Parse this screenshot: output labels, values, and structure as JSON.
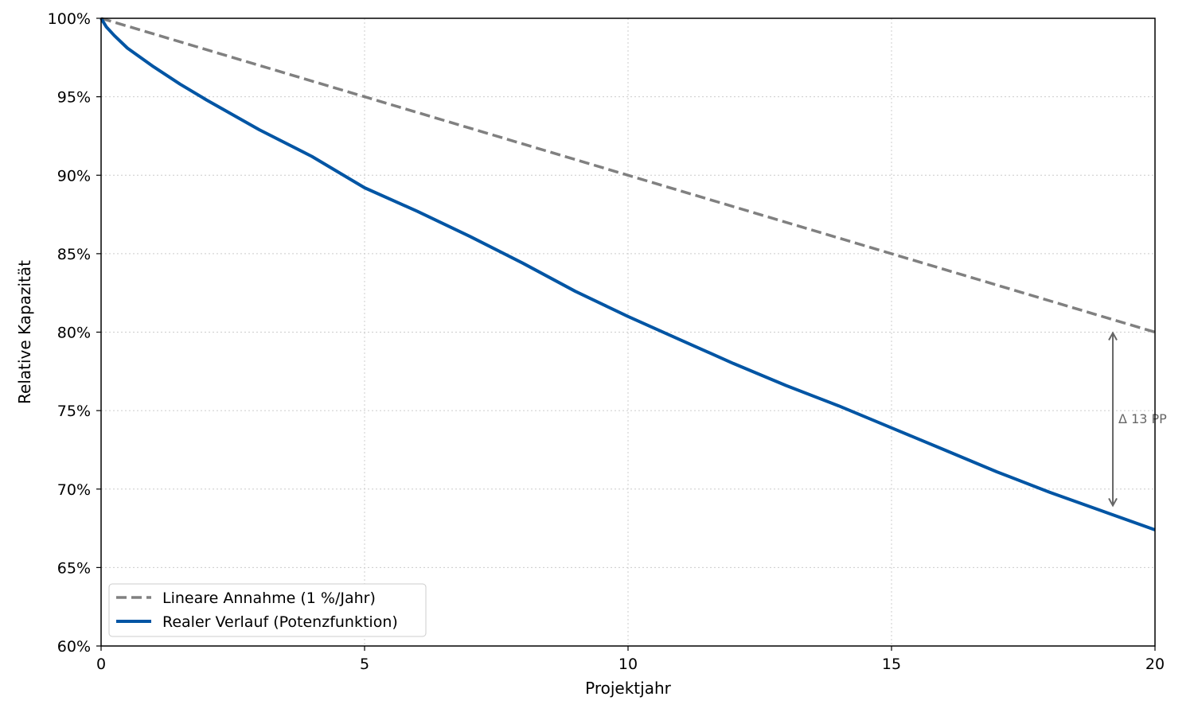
{
  "chart_data": {
    "type": "line",
    "title": "",
    "xlabel": "Projektjahr",
    "ylabel": "Relative Kapazität",
    "xlim": [
      0,
      20
    ],
    "ylim": [
      60,
      100
    ],
    "x_ticks": [
      0,
      5,
      10,
      15,
      20
    ],
    "x_tick_labels": [
      "0",
      "5",
      "10",
      "15",
      "20"
    ],
    "y_ticks": [
      60,
      65,
      70,
      75,
      80,
      85,
      90,
      95,
      100
    ],
    "y_tick_labels": [
      "60%",
      "65%",
      "70%",
      "75%",
      "80%",
      "85%",
      "90%",
      "95%",
      "100%"
    ],
    "grid": true,
    "legend_position": "lower-left",
    "series": [
      {
        "name": "Lineare Annahme (1 %/Jahr)",
        "color": "#808080",
        "style": "dashed",
        "x": [
          0,
          5,
          10,
          15,
          20
        ],
        "y": [
          100,
          95,
          90,
          85,
          80
        ]
      },
      {
        "name": "Realer Verlauf (Potenzfunktion)",
        "color": "#0055a4",
        "style": "solid",
        "x": [
          0,
          0.1,
          0.25,
          0.5,
          1,
          1.5,
          2,
          3,
          4,
          5,
          6,
          7,
          8,
          9,
          10,
          11,
          12,
          13,
          14,
          15,
          16,
          17,
          18,
          19,
          20
        ],
        "y": [
          100,
          99.45,
          98.9,
          98.1,
          96.9,
          95.8,
          94.8,
          92.9,
          91.2,
          89.2,
          87.7,
          86.1,
          84.4,
          82.6,
          81.0,
          79.5,
          78.0,
          76.6,
          75.3,
          73.9,
          72.5,
          71.1,
          69.8,
          68.6,
          67.4
        ]
      }
    ],
    "annotation": {
      "text": "Δ 13 PP",
      "x": 19.2,
      "y_top": 80,
      "y_bottom": 68.9,
      "color": "#666666"
    }
  }
}
